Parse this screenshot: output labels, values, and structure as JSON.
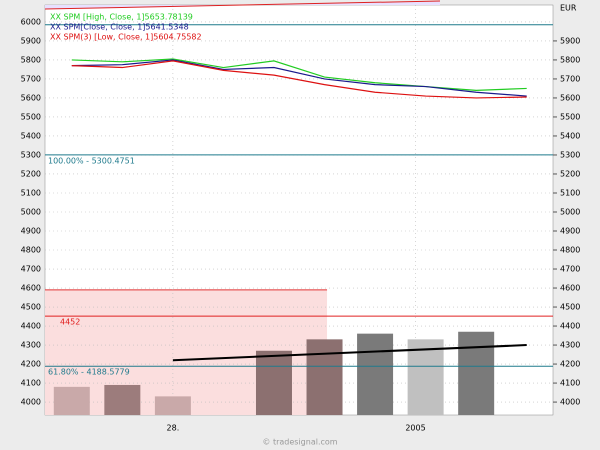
{
  "chart_data": {
    "type": "line",
    "unit": "EUR",
    "watermark": "© tradesignal.com",
    "xlim": [
      -0.53,
      9.52
    ],
    "xticks": [
      {
        "value": 2,
        "label": "28."
      },
      {
        "value": 6.8,
        "label": "2005"
      }
    ],
    "ylim": [
      3932,
      6089
    ],
    "yticks": [
      4000,
      4100,
      4200,
      4300,
      4400,
      4500,
      4600,
      4700,
      4800,
      4900,
      5000,
      5100,
      5200,
      5300,
      5400,
      5500,
      5600,
      5700,
      5800,
      5900,
      6000
    ],
    "y2ticks": [
      4000,
      4100,
      4200,
      4300,
      4400,
      4500,
      4600,
      4700,
      4800,
      4900,
      5000,
      5100,
      5200,
      5300,
      5400,
      5500,
      5600,
      5700,
      5800,
      5900
    ],
    "grid": true,
    "x": [
      0,
      1,
      2,
      3,
      4,
      5,
      6,
      7,
      8,
      9
    ],
    "series": [
      {
        "name": "XX SPM [High, Close, 1]5653.78139",
        "color": "#22cc22",
        "values": [
          5800,
          5790,
          5805,
          5760,
          5795,
          5710,
          5680,
          5660,
          5640,
          5650
        ]
      },
      {
        "name": "XX SPM[Close, Close, 1]5641.5348",
        "color": "#1a1a8c",
        "values": [
          5770,
          5775,
          5800,
          5750,
          5760,
          5700,
          5670,
          5660,
          5630,
          5610
        ]
      },
      {
        "name": "XX SPM(3) [Low, Close, 1]5604.75582",
        "color": "#dd1111",
        "values": [
          5770,
          5760,
          5795,
          5745,
          5720,
          5670,
          5630,
          5610,
          5600,
          5605
        ]
      }
    ],
    "levels": [
      {
        "value": 5985,
        "color": "#1f7a8c"
      },
      {
        "value": 5300.4751,
        "label": "100.00% - 5300.4751",
        "color": "#1f7a8c"
      },
      {
        "value": 4452,
        "label": "4452",
        "color": "#e02020"
      },
      {
        "value": 4188.5779,
        "label": "61.80% - 4188.5779",
        "color": "#1f7a8c"
      }
    ],
    "zone": {
      "value": 4590,
      "x_end": 5.05,
      "color": "#fbdede",
      "line": "#e03030"
    },
    "bars": {
      "x": [
        0,
        1,
        2,
        4,
        5,
        6,
        7,
        8
      ],
      "values": [
        4080,
        4090,
        4030,
        4270,
        4330,
        4360,
        4330,
        4370
      ],
      "colors": [
        "#c9a9a9",
        "#9c7c7c",
        "#c9a9a9",
        "#8c7070",
        "#8c7070",
        "#7a7a7a",
        "#c0c0c0",
        "#7a7a7a"
      ]
    },
    "trend": {
      "x": [
        2,
        9
      ],
      "values": [
        4220,
        4300
      ],
      "color": "#000000"
    }
  }
}
